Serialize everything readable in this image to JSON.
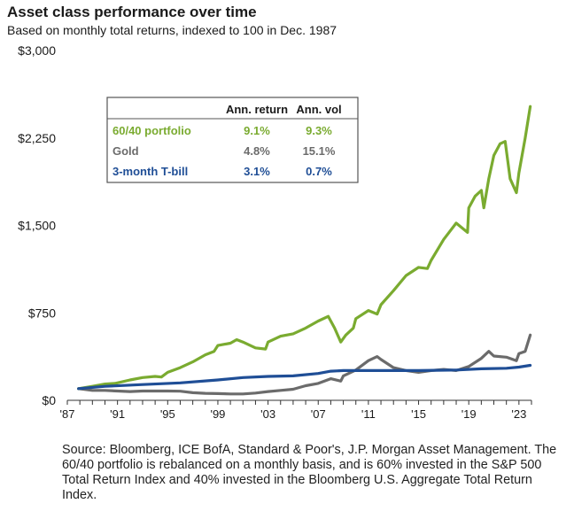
{
  "header": {
    "title": "Asset class performance over time",
    "subtitle": "Based on monthly total returns, indexed to 100 in Dec. 1987"
  },
  "source_note": "Source: Bloomberg, ICE BofA, Standard & Poor's, J.P. Morgan Asset Management. The 60/40 portfolio is rebalanced on a monthly basis, and is 60% invested in the S&P 500 Total Return Index and 40% invested in the Bloomberg U.S. Aggregate Total Return Index.",
  "colors": {
    "portfolio": "#7aab30",
    "gold": "#6b6b6b",
    "tbill": "#1f4e96",
    "axis": "#333333",
    "table_border": "#555555"
  },
  "chart_data": {
    "type": "line",
    "title": "Asset class performance over time",
    "subtitle": "Based on monthly total returns, indexed to 100 in Dec. 1987",
    "xlabel": "",
    "ylabel": "",
    "x_tick_labels": [
      "'87",
      "'91",
      "'95",
      "'99",
      "'03",
      "'07",
      "'11",
      "'15",
      "'19",
      "'23"
    ],
    "x_tick_years": [
      1987,
      1991,
      1995,
      1999,
      2003,
      2007,
      2011,
      2015,
      2019,
      2023
    ],
    "y_tick_labels": [
      "$0",
      "$750",
      "$1,500",
      "$2,250",
      "$3,000"
    ],
    "y_tick_values": [
      0,
      750,
      1500,
      2250,
      3000
    ],
    "xlim": [
      1987,
      2024
    ],
    "ylim": [
      0,
      3000
    ],
    "grid": false,
    "series": [
      {
        "name": "60/40 portfolio",
        "x": [
          1987.9,
          1989,
          1990,
          1990.8,
          1992,
          1993,
          1994,
          1994.5,
          1995,
          1996,
          1997,
          1998,
          1998.7,
          1999,
          2000,
          2000.5,
          2001,
          2002,
          2002.8,
          2003,
          2004,
          2005,
          2006,
          2007,
          2007.8,
          2008.3,
          2008.8,
          2009.2,
          2009.8,
          2010,
          2011,
          2011.7,
          2012,
          2013,
          2014,
          2015,
          2015.7,
          2016,
          2017,
          2018,
          2018.9,
          2019,
          2019.5,
          2020,
          2020.2,
          2020.6,
          2021,
          2021.5,
          2021.9,
          2022.3,
          2022.8,
          2023,
          2023.5,
          2023.9
        ],
        "values": [
          100,
          120,
          140,
          145,
          175,
          195,
          205,
          200,
          240,
          280,
          330,
          390,
          420,
          470,
          490,
          520,
          500,
          450,
          440,
          500,
          550,
          570,
          620,
          680,
          720,
          620,
          500,
          560,
          620,
          700,
          770,
          740,
          820,
          940,
          1070,
          1140,
          1130,
          1200,
          1380,
          1520,
          1440,
          1650,
          1750,
          1800,
          1650,
          1900,
          2100,
          2200,
          2220,
          1900,
          1780,
          1950,
          2250,
          2520
        ]
      },
      {
        "name": "Gold",
        "x": [
          1987.9,
          1989,
          1990,
          1991,
          1992,
          1993,
          1994,
          1995,
          1996,
          1997,
          1998,
          1999,
          2000,
          2001,
          2002,
          2003,
          2004,
          2005,
          2006,
          2007,
          2008,
          2008.8,
          2009,
          2010,
          2011,
          2011.7,
          2012,
          2013,
          2014,
          2015,
          2016,
          2017,
          2018,
          2019,
          2020,
          2020.6,
          2021,
          2022,
          2022.8,
          2023,
          2023.5,
          2023.9
        ],
        "values": [
          100,
          85,
          85,
          80,
          75,
          80,
          80,
          80,
          78,
          65,
          60,
          58,
          55,
          55,
          62,
          75,
          85,
          95,
          125,
          145,
          185,
          165,
          210,
          260,
          340,
          375,
          350,
          280,
          255,
          240,
          255,
          265,
          255,
          290,
          360,
          420,
          380,
          370,
          340,
          400,
          420,
          560
        ]
      },
      {
        "name": "3-month T-bill",
        "x": [
          1987.9,
          1990,
          1993,
          1996,
          1999,
          2001,
          2003,
          2005,
          2007,
          2008,
          2009,
          2012,
          2015,
          2018,
          2020,
          2022,
          2023,
          2023.9
        ],
        "values": [
          100,
          120,
          135,
          150,
          175,
          195,
          205,
          210,
          230,
          250,
          255,
          255,
          255,
          260,
          270,
          275,
          285,
          300
        ]
      }
    ],
    "stats_table": {
      "columns": [
        "Ann. return",
        "Ann. vol"
      ],
      "rows": [
        {
          "label": "60/40 portfolio",
          "return": "9.1%",
          "vol": "9.3%"
        },
        {
          "label": "Gold",
          "return": "4.8%",
          "vol": "15.1%"
        },
        {
          "label": "3-month T-bill",
          "return": "3.1%",
          "vol": "0.7%"
        }
      ]
    }
  }
}
